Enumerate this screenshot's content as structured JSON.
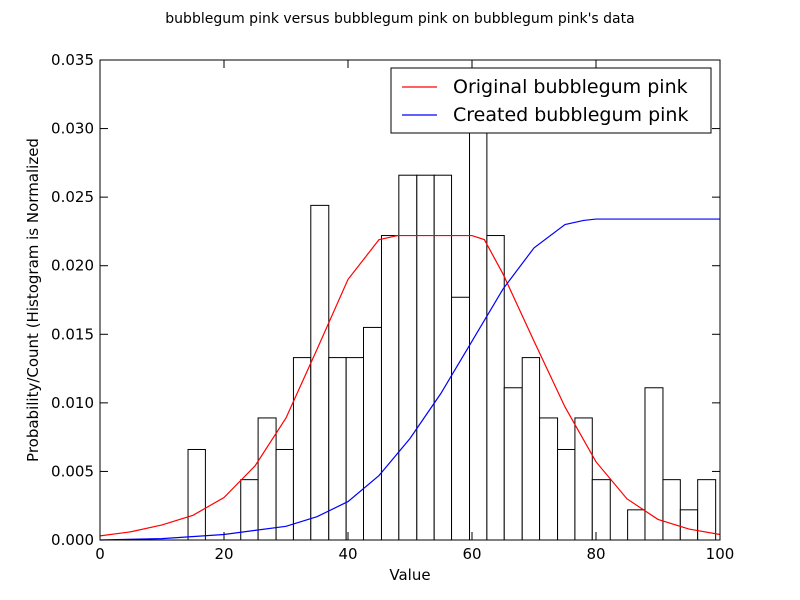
{
  "chart_data": {
    "type": "bar",
    "title": "bubblegum pink versus bubblegum pink on bubblegum pink's data",
    "xlabel": "Value",
    "ylabel": "Probability/Count (Histogram is Normalized",
    "xlim": [
      0,
      100
    ],
    "ylim": [
      0,
      0.035
    ],
    "xticks": [
      "0",
      "20",
      "40",
      "60",
      "80",
      "100"
    ],
    "yticks": [
      "0.000",
      "0.005",
      "0.010",
      "0.015",
      "0.020",
      "0.025",
      "0.030",
      "0.035"
    ],
    "grid": false,
    "legend_position": "top-right",
    "histogram": {
      "bins": [
        {
          "x0": 14.2,
          "x1": 17.0,
          "value": 0.0066
        },
        {
          "x0": 22.7,
          "x1": 25.5,
          "value": 0.0044
        },
        {
          "x0": 25.5,
          "x1": 28.4,
          "value": 0.0089
        },
        {
          "x0": 28.4,
          "x1": 31.2,
          "value": 0.0066
        },
        {
          "x0": 31.2,
          "x1": 34.0,
          "value": 0.0133
        },
        {
          "x0": 34.0,
          "x1": 36.9,
          "value": 0.0244
        },
        {
          "x0": 36.9,
          "x1": 39.7,
          "value": 0.0133
        },
        {
          "x0": 39.7,
          "x1": 42.5,
          "value": 0.0133
        },
        {
          "x0": 42.5,
          "x1": 45.4,
          "value": 0.0155
        },
        {
          "x0": 45.4,
          "x1": 48.2,
          "value": 0.0222
        },
        {
          "x0": 48.2,
          "x1": 51.1,
          "value": 0.0266
        },
        {
          "x0": 51.1,
          "x1": 53.9,
          "value": 0.0266
        },
        {
          "x0": 53.9,
          "x1": 56.7,
          "value": 0.0266
        },
        {
          "x0": 56.7,
          "x1": 59.6,
          "value": 0.0177
        },
        {
          "x0": 59.6,
          "x1": 62.4,
          "value": 0.031
        },
        {
          "x0": 62.4,
          "x1": 65.2,
          "value": 0.0222
        },
        {
          "x0": 65.2,
          "x1": 68.1,
          "value": 0.0111
        },
        {
          "x0": 68.1,
          "x1": 70.9,
          "value": 0.0133
        },
        {
          "x0": 70.9,
          "x1": 73.8,
          "value": 0.0089
        },
        {
          "x0": 73.8,
          "x1": 76.6,
          "value": 0.0066
        },
        {
          "x0": 76.6,
          "x1": 79.4,
          "value": 0.0089
        },
        {
          "x0": 79.4,
          "x1": 82.3,
          "value": 0.0044
        },
        {
          "x0": 85.1,
          "x1": 87.9,
          "value": 0.0022
        },
        {
          "x0": 87.9,
          "x1": 90.8,
          "value": 0.0111
        },
        {
          "x0": 90.8,
          "x1": 93.6,
          "value": 0.0044
        },
        {
          "x0": 93.6,
          "x1": 96.4,
          "value": 0.0022
        },
        {
          "x0": 96.4,
          "x1": 99.3,
          "value": 0.0044
        }
      ],
      "edge_color": "#000000",
      "fill": "#ffffff"
    },
    "series": [
      {
        "name": "Original bubblegum pink",
        "color": "#ff0000",
        "type": "line",
        "x": [
          0,
          5,
          10,
          15,
          20,
          25,
          30,
          35,
          40,
          45,
          48,
          50,
          55,
          60,
          62,
          65,
          70,
          75,
          80,
          85,
          90,
          95,
          100
        ],
        "y": [
          0.0003,
          0.0006,
          0.0011,
          0.0018,
          0.0031,
          0.0054,
          0.0089,
          0.0139,
          0.019,
          0.0219,
          0.0222,
          0.0222,
          0.0222,
          0.0222,
          0.0219,
          0.0194,
          0.0145,
          0.0097,
          0.0057,
          0.003,
          0.0015,
          0.0008,
          0.0004
        ]
      },
      {
        "name": "Created bubblegum pink",
        "color": "#0000ff",
        "type": "line",
        "x": [
          0,
          10,
          20,
          25,
          30,
          35,
          40,
          45,
          50,
          55,
          60,
          65,
          70,
          75,
          78,
          80,
          82,
          85,
          90,
          100
        ],
        "y": [
          0.0,
          0.0001,
          0.0004,
          0.0007,
          0.001,
          0.0017,
          0.0028,
          0.0047,
          0.0074,
          0.0107,
          0.0145,
          0.0183,
          0.0213,
          0.023,
          0.0233,
          0.0234,
          0.0234,
          0.0234,
          0.0234,
          0.0234
        ]
      }
    ]
  }
}
